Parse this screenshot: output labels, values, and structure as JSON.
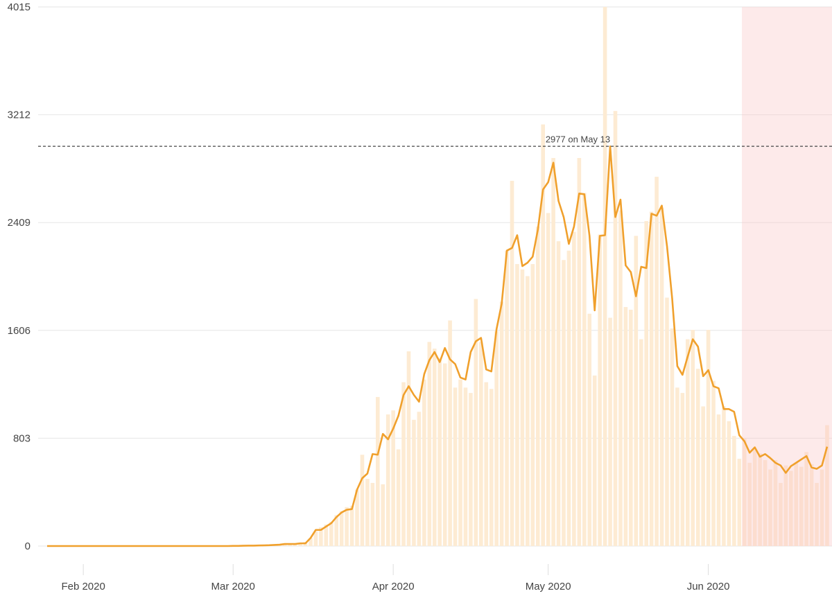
{
  "chart_data": {
    "type": "bar",
    "categories": [
      null,
      null,
      null,
      null,
      null,
      null,
      null,
      "Feb 2020",
      null,
      null,
      null,
      null,
      null,
      null,
      null,
      null,
      null,
      null,
      null,
      null,
      null,
      null,
      null,
      null,
      null,
      null,
      null,
      null,
      null,
      null,
      null,
      null,
      null,
      null,
      null,
      null,
      "Mar 2020",
      null,
      null,
      null,
      null,
      null,
      null,
      null,
      null,
      null,
      null,
      null,
      null,
      null,
      null,
      null,
      null,
      null,
      null,
      null,
      null,
      null,
      null,
      null,
      null,
      null,
      null,
      null,
      null,
      null,
      null,
      "Apr 2020",
      null,
      null,
      null,
      null,
      null,
      null,
      null,
      null,
      null,
      null,
      null,
      null,
      null,
      null,
      null,
      null,
      null,
      null,
      null,
      null,
      null,
      null,
      null,
      null,
      null,
      null,
      null,
      null,
      null,
      "May 2020",
      null,
      null,
      null,
      null,
      null,
      null,
      null,
      null,
      null,
      null,
      null,
      null,
      null,
      null,
      null,
      null,
      null,
      null,
      null,
      null,
      null,
      null,
      null,
      null,
      null,
      null,
      null,
      null,
      null,
      null,
      "Jun 2020",
      null,
      null,
      null,
      null,
      null,
      null,
      null,
      null,
      null,
      null,
      null,
      null,
      null,
      null,
      null,
      null,
      null,
      null,
      null,
      null,
      null,
      null,
      null
    ],
    "series": [
      {
        "type": "bar",
        "color": "#fdebd3",
        "values": [
          0,
          0,
          0,
          0,
          0,
          0,
          0,
          0,
          0,
          0,
          0,
          0,
          0,
          0,
          0,
          0,
          0,
          0,
          0,
          0,
          0,
          0,
          0,
          0,
          0,
          0,
          0,
          0,
          0,
          0,
          0,
          0,
          0,
          0,
          0,
          0,
          1,
          2,
          3,
          5,
          3,
          6,
          8,
          10,
          7,
          10,
          12,
          20,
          18,
          25,
          30,
          60,
          110,
          140,
          160,
          180,
          230,
          260,
          290,
          300,
          420,
          680,
          500,
          470,
          1110,
          460,
          980,
          1010,
          720,
          1220,
          1450,
          940,
          1000,
          1240,
          1520,
          1470,
          1400,
          1360,
          1680,
          1180,
          1240,
          1180,
          1140,
          1840,
          1520,
          1220,
          1170,
          1600,
          1820,
          2200,
          2720,
          2100,
          2060,
          2010,
          2100,
          2380,
          3140,
          2480,
          2890,
          2270,
          2130,
          2200,
          2340,
          2890,
          2630,
          1730,
          1270,
          2320,
          4015,
          1700,
          3240,
          2500,
          1780,
          1760,
          2310,
          1540,
          2420,
          2490,
          2750,
          2520,
          1850,
          1620,
          1180,
          1140,
          1540,
          1610,
          1320,
          1040,
          1610,
          1230,
          980,
          1040,
          930,
          820,
          650,
          800,
          620,
          720,
          690,
          640,
          570,
          640,
          470,
          600,
          560,
          620,
          590,
          700,
          610,
          470,
          570,
          900
        ]
      },
      {
        "type": "line",
        "color": "#f0a02c",
        "values": [
          0,
          0,
          0,
          0,
          0,
          0,
          0,
          0,
          0,
          0,
          0,
          0,
          0,
          0,
          0,
          0,
          0,
          0,
          0,
          0,
          0,
          0,
          0,
          0,
          0,
          0,
          0,
          0,
          0,
          0,
          0,
          0,
          0,
          0,
          0,
          0,
          1,
          1,
          2,
          3,
          3,
          4,
          5,
          6,
          8,
          10,
          15,
          15,
          15,
          20,
          20,
          60,
          120,
          120,
          145,
          170,
          215,
          250,
          270,
          275,
          420,
          505,
          540,
          685,
          680,
          835,
          795,
          875,
          970,
          1125,
          1190,
          1125,
          1075,
          1280,
          1385,
          1445,
          1370,
          1475,
          1390,
          1355,
          1255,
          1240,
          1445,
          1525,
          1550,
          1315,
          1300,
          1615,
          1805,
          2200,
          2220,
          2315,
          2085,
          2110,
          2155,
          2355,
          2655,
          2710,
          2855,
          2570,
          2450,
          2250,
          2380,
          2625,
          2620,
          2310,
          1755,
          2310,
          2315,
          2977,
          2450,
          2580,
          2090,
          2040,
          1860,
          2080,
          2070,
          2475,
          2460,
          2535,
          2235,
          1845,
          1340,
          1275,
          1410,
          1540,
          1485,
          1265,
          1310,
          1190,
          1175,
          1020,
          1020,
          1000,
          825,
          780,
          695,
          735,
          665,
          685,
          655,
          620,
          600,
          545,
          595,
          620,
          645,
          670,
          585,
          575,
          600,
          740
        ]
      }
    ],
    "ylim": [
      0,
      4015
    ],
    "yticks": [
      0,
      803,
      1606,
      2409,
      3212,
      4015
    ],
    "grid": true,
    "reference_line": {
      "value": 2977,
      "index": 109,
      "text": "2977 on May 13"
    },
    "shaded_from_index": 135,
    "shade_color": "rgba(250,200,200,0.38)"
  }
}
